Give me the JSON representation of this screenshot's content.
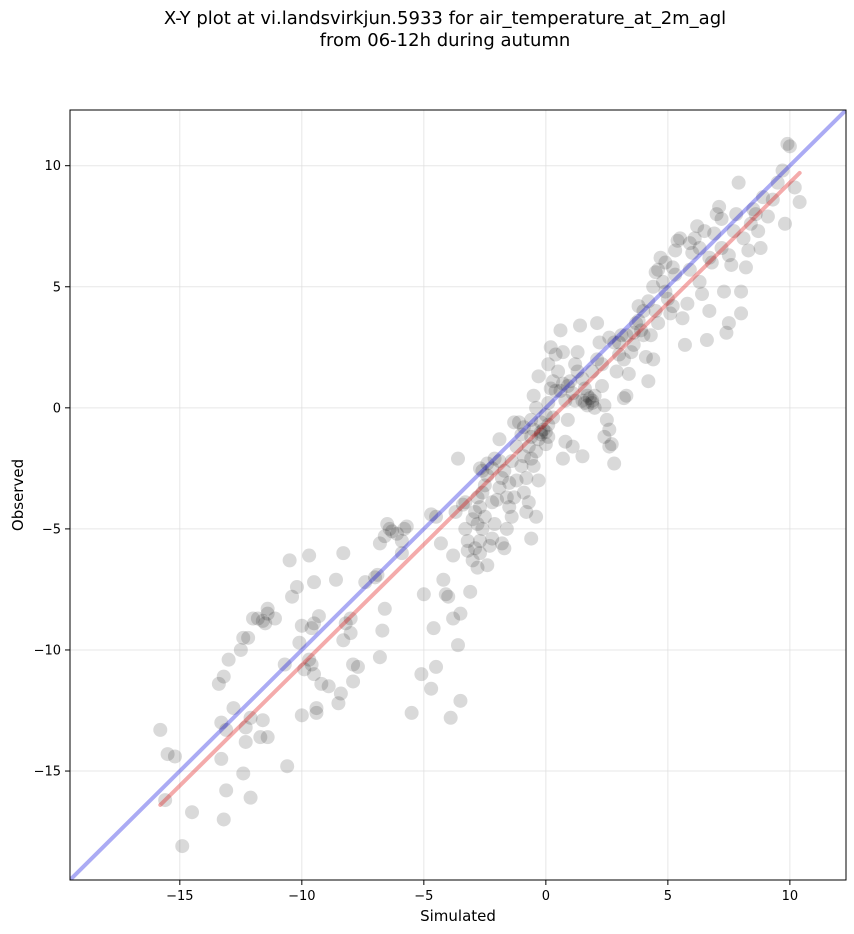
{
  "chart_data": {
    "type": "scatter",
    "title": "X-Y plot at vi.landsvirkjun.5933 for air_temperature_at_2m_agl",
    "subtitle": "from 06-12h during autumn",
    "xlabel": "Simulated",
    "ylabel": "Observed",
    "xlim": [
      -19.5,
      12.3
    ],
    "ylim": [
      -19.5,
      12.3
    ],
    "xticks": [
      -15,
      -10,
      -5,
      0,
      5,
      10
    ],
    "yticks": [
      -15,
      -10,
      -5,
      0,
      5,
      10
    ],
    "xtick_labels": [
      "−15",
      "−10",
      "−5",
      "0",
      "5",
      "10"
    ],
    "ytick_labels": [
      "−15",
      "−10",
      "−5",
      "0",
      "5",
      "10"
    ],
    "grid": true,
    "identity_line": {
      "color": "#0000dd",
      "x": [
        -19.5,
        12.3
      ],
      "y": [
        -19.5,
        12.3
      ]
    },
    "fit_line": {
      "color": "#dd0000",
      "x": [
        -15.8,
        10.4
      ],
      "y": [
        -16.4,
        9.7
      ]
    },
    "points": [
      [
        -15.8,
        -13.3
      ],
      [
        -15.5,
        -14.3
      ],
      [
        -15.2,
        -14.4
      ],
      [
        -15.6,
        -16.2
      ],
      [
        -14.9,
        -18.1
      ],
      [
        -14.5,
        -16.7
      ],
      [
        -13.4,
        -11.4
      ],
      [
        -13.2,
        -11.1
      ],
      [
        -13.0,
        -10.4
      ],
      [
        -12.8,
        -12.4
      ],
      [
        -13.3,
        -13.0
      ],
      [
        -13.1,
        -13.3
      ],
      [
        -13.3,
        -14.5
      ],
      [
        -13.1,
        -15.8
      ],
      [
        -13.2,
        -17.0
      ],
      [
        -12.4,
        -15.1
      ],
      [
        -12.1,
        -16.1
      ],
      [
        -12.3,
        -13.8
      ],
      [
        -12.3,
        -13.2
      ],
      [
        -12.1,
        -12.8
      ],
      [
        -11.7,
        -13.6
      ],
      [
        -11.4,
        -13.6
      ],
      [
        -11.6,
        -12.9
      ],
      [
        -12.5,
        -10.0
      ],
      [
        -12.4,
        -9.5
      ],
      [
        -12.2,
        -9.5
      ],
      [
        -12.0,
        -8.7
      ],
      [
        -11.8,
        -8.7
      ],
      [
        -11.6,
        -8.8
      ],
      [
        -11.4,
        -8.5
      ],
      [
        -11.4,
        -8.3
      ],
      [
        -11.1,
        -8.7
      ],
      [
        -11.5,
        -8.9
      ],
      [
        -10.6,
        -14.8
      ],
      [
        -10.7,
        -10.6
      ],
      [
        -10.5,
        -6.3
      ],
      [
        -10.4,
        -7.8
      ],
      [
        -10.2,
        -7.4
      ],
      [
        -10.0,
        -9.0
      ],
      [
        -10.1,
        -9.7
      ],
      [
        -9.9,
        -10.8
      ],
      [
        -9.7,
        -10.4
      ],
      [
        -9.6,
        -10.6
      ],
      [
        -9.5,
        -11.0
      ],
      [
        -10.0,
        -12.7
      ],
      [
        -9.4,
        -12.6
      ],
      [
        -9.4,
        -12.4
      ],
      [
        -9.2,
        -11.4
      ],
      [
        -9.6,
        -9.1
      ],
      [
        -9.5,
        -8.9
      ],
      [
        -9.3,
        -8.6
      ],
      [
        -9.7,
        -6.1
      ],
      [
        -9.5,
        -7.2
      ],
      [
        -8.6,
        -7.1
      ],
      [
        -8.9,
        -11.5
      ],
      [
        -8.5,
        -12.2
      ],
      [
        -8.4,
        -11.8
      ],
      [
        -8.3,
        -9.6
      ],
      [
        -8.2,
        -8.9
      ],
      [
        -8.0,
        -8.7
      ],
      [
        -8.3,
        -6.0
      ],
      [
        -7.9,
        -10.6
      ],
      [
        -7.7,
        -10.7
      ],
      [
        -8.0,
        -9.3
      ],
      [
        -7.9,
        -11.3
      ],
      [
        -7.4,
        -7.2
      ],
      [
        -7.0,
        -7.0
      ],
      [
        -6.9,
        -6.9
      ],
      [
        -6.8,
        -10.3
      ],
      [
        -6.7,
        -9.2
      ],
      [
        -6.6,
        -8.3
      ],
      [
        -6.8,
        -5.6
      ],
      [
        -6.6,
        -5.3
      ],
      [
        -6.4,
        -5.0
      ],
      [
        -6.5,
        -4.8
      ],
      [
        -6.3,
        -5.1
      ],
      [
        -6.1,
        -5.2
      ],
      [
        -5.9,
        -5.5
      ],
      [
        -5.8,
        -5.0
      ],
      [
        -5.7,
        -4.9
      ],
      [
        -5.9,
        -6.0
      ],
      [
        -5.5,
        -12.6
      ],
      [
        -5.1,
        -11.0
      ],
      [
        -5.0,
        -7.7
      ],
      [
        -4.7,
        -11.6
      ],
      [
        -4.5,
        -10.7
      ],
      [
        -4.6,
        -9.1
      ],
      [
        -4.7,
        -4.4
      ],
      [
        -4.5,
        -4.5
      ],
      [
        -4.3,
        -5.6
      ],
      [
        -4.2,
        -7.1
      ],
      [
        -4.1,
        -7.7
      ],
      [
        -4.0,
        -7.8
      ],
      [
        -3.9,
        -12.8
      ],
      [
        -3.5,
        -12.1
      ],
      [
        -3.6,
        -9.8
      ],
      [
        -3.8,
        -8.7
      ],
      [
        -3.5,
        -8.5
      ],
      [
        -3.8,
        -6.1
      ],
      [
        -3.7,
        -4.3
      ],
      [
        -3.6,
        -2.1
      ],
      [
        -3.4,
        -4.0
      ],
      [
        -3.3,
        -3.9
      ],
      [
        -3.3,
        -5.0
      ],
      [
        -3.2,
        -5.5
      ],
      [
        -3.0,
        -6.3
      ],
      [
        -3.1,
        -7.6
      ],
      [
        -2.8,
        -6.6
      ],
      [
        -2.7,
        -6.0
      ],
      [
        -3.2,
        -5.9
      ],
      [
        -2.9,
        -5.8
      ],
      [
        -2.7,
        -5.5
      ],
      [
        -2.6,
        -5.0
      ],
      [
        -2.8,
        -4.8
      ],
      [
        -2.9,
        -4.3
      ],
      [
        -2.7,
        -4.1
      ],
      [
        -2.8,
        -3.7
      ],
      [
        -2.6,
        -3.5
      ],
      [
        -2.5,
        -3.2
      ],
      [
        -2.6,
        -2.6
      ],
      [
        -2.4,
        -2.3
      ],
      [
        -2.7,
        -2.5
      ],
      [
        -2.5,
        -4.5
      ],
      [
        -2.4,
        -6.5
      ],
      [
        -2.3,
        -5.7
      ],
      [
        -2.2,
        -5.4
      ],
      [
        -2.1,
        -4.8
      ],
      [
        -2.0,
        -3.8
      ],
      [
        -1.9,
        -3.3
      ],
      [
        -1.8,
        -2.9
      ],
      [
        -2.1,
        -2.1
      ],
      [
        -1.9,
        -1.3
      ],
      [
        -1.7,
        -2.6
      ],
      [
        -1.6,
        -3.7
      ],
      [
        -1.5,
        -4.1
      ],
      [
        -1.6,
        -5.0
      ],
      [
        -1.8,
        -5.6
      ],
      [
        -1.7,
        -5.8
      ],
      [
        -1.4,
        -4.5
      ],
      [
        -1.3,
        -3.7
      ],
      [
        -1.2,
        -3.0
      ],
      [
        -1.4,
        -2.2
      ],
      [
        -1.2,
        -1.6
      ],
      [
        -1.1,
        -0.6
      ],
      [
        -1.3,
        -0.6
      ],
      [
        -0.9,
        -0.8
      ],
      [
        -1.0,
        -2.4
      ],
      [
        -0.9,
        -3.5
      ],
      [
        -0.8,
        -4.3
      ],
      [
        -0.7,
        -3.9
      ],
      [
        -0.8,
        -2.9
      ],
      [
        -0.6,
        -2.1
      ],
      [
        -0.5,
        -2.4
      ],
      [
        -0.7,
        -1.6
      ],
      [
        -0.6,
        -1.2
      ],
      [
        -0.5,
        -0.9
      ],
      [
        -0.6,
        -0.5
      ],
      [
        -0.4,
        0.0
      ],
      [
        -0.5,
        0.5
      ],
      [
        -0.3,
        1.3
      ],
      [
        -0.4,
        -1.8
      ],
      [
        -0.3,
        -3.0
      ],
      [
        -0.4,
        -4.5
      ],
      [
        -0.6,
        -5.4
      ],
      [
        -0.2,
        -1.1
      ],
      [
        -0.1,
        -0.9
      ],
      [
        -0.2,
        -0.6
      ],
      [
        0.0,
        -1.0
      ],
      [
        0.1,
        -1.2
      ],
      [
        0.0,
        -0.3
      ],
      [
        0.1,
        0.2
      ],
      [
        0.2,
        0.8
      ],
      [
        0.3,
        1.1
      ],
      [
        0.1,
        1.8
      ],
      [
        0.2,
        2.5
      ],
      [
        0.4,
        2.2
      ],
      [
        0.5,
        1.5
      ],
      [
        0.6,
        3.2
      ],
      [
        0.7,
        2.3
      ],
      [
        0.7,
        1.0
      ],
      [
        0.6,
        0.7
      ],
      [
        0.8,
        0.3
      ],
      [
        0.9,
        -0.5
      ],
      [
        0.8,
        -1.4
      ],
      [
        0.7,
        -2.1
      ],
      [
        1.1,
        -1.6
      ],
      [
        1.2,
        0.3
      ],
      [
        1.0,
        1.1
      ],
      [
        1.2,
        1.8
      ],
      [
        1.3,
        2.3
      ],
      [
        1.4,
        3.4
      ],
      [
        1.5,
        1.2
      ],
      [
        1.6,
        0.8
      ],
      [
        1.5,
        0.3
      ],
      [
        1.7,
        0.1
      ],
      [
        1.8,
        0.4
      ],
      [
        1.9,
        0.2
      ],
      [
        2.0,
        0.5
      ],
      [
        1.9,
        1.5
      ],
      [
        2.1,
        2.0
      ],
      [
        2.2,
        2.7
      ],
      [
        2.1,
        3.5
      ],
      [
        1.5,
        -2.0
      ],
      [
        2.3,
        0.9
      ],
      [
        2.4,
        0.1
      ],
      [
        2.5,
        -0.5
      ],
      [
        2.6,
        -0.9
      ],
      [
        2.4,
        -1.2
      ],
      [
        2.7,
        -1.5
      ],
      [
        2.8,
        -2.3
      ],
      [
        2.6,
        -1.6
      ],
      [
        2.9,
        1.5
      ],
      [
        3.0,
        2.2
      ],
      [
        2.8,
        2.7
      ],
      [
        3.1,
        3.0
      ],
      [
        3.2,
        0.4
      ],
      [
        3.3,
        0.5
      ],
      [
        3.4,
        1.4
      ],
      [
        3.2,
        2.0
      ],
      [
        3.5,
        2.3
      ],
      [
        3.6,
        3.1
      ],
      [
        3.7,
        3.5
      ],
      [
        3.9,
        3.2
      ],
      [
        3.8,
        3.6
      ],
      [
        4.0,
        4.0
      ],
      [
        4.1,
        2.1
      ],
      [
        4.2,
        1.1
      ],
      [
        4.3,
        3.0
      ],
      [
        4.4,
        2.0
      ],
      [
        4.2,
        4.4
      ],
      [
        4.5,
        4.0
      ],
      [
        4.6,
        3.5
      ],
      [
        4.4,
        5.0
      ],
      [
        4.6,
        5.7
      ],
      [
        4.8,
        5.2
      ],
      [
        4.7,
        6.2
      ],
      [
        4.9,
        6.0
      ],
      [
        5.0,
        4.5
      ],
      [
        5.1,
        3.9
      ],
      [
        5.2,
        4.2
      ],
      [
        5.3,
        5.5
      ],
      [
        5.4,
        6.9
      ],
      [
        5.5,
        7.0
      ],
      [
        5.3,
        6.5
      ],
      [
        5.6,
        3.7
      ],
      [
        5.7,
        2.6
      ],
      [
        5.8,
        4.3
      ],
      [
        5.9,
        5.7
      ],
      [
        6.0,
        6.4
      ],
      [
        6.1,
        7.0
      ],
      [
        6.2,
        7.5
      ],
      [
        6.3,
        5.2
      ],
      [
        6.4,
        4.7
      ],
      [
        6.6,
        2.8
      ],
      [
        6.7,
        4.0
      ],
      [
        6.8,
        6.0
      ],
      [
        6.9,
        7.2
      ],
      [
        7.0,
        8.0
      ],
      [
        7.1,
        8.3
      ],
      [
        7.2,
        6.6
      ],
      [
        7.3,
        4.8
      ],
      [
        7.4,
        3.1
      ],
      [
        7.5,
        3.5
      ],
      [
        7.6,
        5.9
      ],
      [
        7.7,
        7.3
      ],
      [
        7.8,
        8.0
      ],
      [
        7.9,
        9.3
      ],
      [
        8.0,
        4.8
      ],
      [
        8.0,
        3.9
      ],
      [
        8.2,
        5.8
      ],
      [
        8.3,
        6.5
      ],
      [
        8.4,
        7.6
      ],
      [
        8.5,
        8.2
      ],
      [
        8.6,
        8.0
      ],
      [
        8.7,
        7.3
      ],
      [
        8.8,
        6.6
      ],
      [
        8.9,
        8.7
      ],
      [
        9.1,
        7.9
      ],
      [
        9.3,
        8.6
      ],
      [
        9.5,
        9.3
      ],
      [
        9.7,
        9.8
      ],
      [
        9.8,
        7.6
      ],
      [
        9.9,
        10.9
      ],
      [
        10.0,
        10.8
      ],
      [
        10.2,
        9.1
      ],
      [
        10.4,
        8.5
      ],
      [
        -0.2,
        -1.0
      ],
      [
        -0.3,
        -1.3
      ],
      [
        0.1,
        -0.7
      ],
      [
        0.0,
        -1.5
      ],
      [
        1.6,
        0.2
      ],
      [
        1.9,
        0.3
      ],
      [
        1.7,
        0.5
      ],
      [
        2.0,
        0.0
      ],
      [
        3.0,
        2.7
      ],
      [
        3.3,
        3.0
      ],
      [
        3.6,
        2.6
      ],
      [
        4.5,
        5.6
      ],
      [
        5.9,
        6.8
      ],
      [
        6.5,
        7.3
      ],
      [
        7.5,
        6.3
      ],
      [
        8.1,
        7.0
      ],
      [
        -2.4,
        -2.8
      ],
      [
        -2.2,
        -2.5
      ],
      [
        -1.9,
        -2.2
      ],
      [
        -1.0,
        -1.1
      ],
      [
        0.4,
        0.7
      ],
      [
        0.9,
        0.9
      ],
      [
        1.3,
        1.5
      ],
      [
        2.6,
        2.9
      ],
      [
        4.0,
        3.0
      ],
      [
        4.9,
        4.8
      ],
      [
        6.7,
        6.2
      ],
      [
        7.2,
        7.8
      ],
      [
        -3.0,
        -4.6
      ],
      [
        -2.2,
        -3.9
      ],
      [
        -1.5,
        -3.1
      ],
      [
        -0.9,
        -2.0
      ],
      [
        0.3,
        -0.4
      ],
      [
        1.1,
        0.6
      ],
      [
        2.3,
        1.8
      ],
      [
        3.8,
        4.2
      ],
      [
        5.2,
        5.8
      ],
      [
        6.3,
        6.6
      ]
    ]
  }
}
